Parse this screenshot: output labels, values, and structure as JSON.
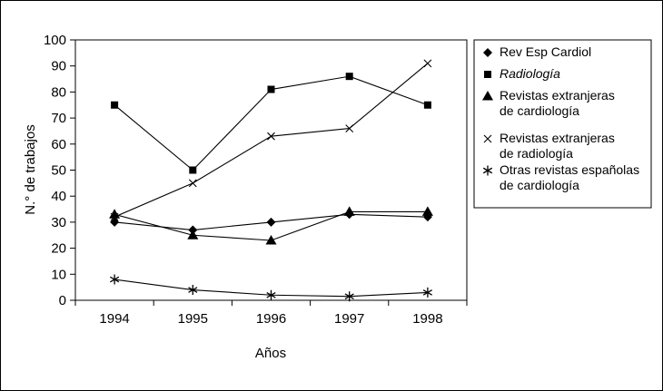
{
  "chart_data": {
    "type": "line",
    "xlabel": "Años",
    "ylabel": "N.° de trabajos",
    "categories": [
      "1994",
      "1995",
      "1996",
      "1997",
      "1998"
    ],
    "ylim": [
      0,
      100
    ],
    "yticks": [
      "0",
      "10",
      "20",
      "30",
      "40",
      "50",
      "60",
      "70",
      "80",
      "90",
      "100"
    ],
    "grid": false,
    "legend_position": "right",
    "series": [
      {
        "name": "Rev Esp Cardiol",
        "name_lines": [
          "Rev Esp Cardiol"
        ],
        "italic": false,
        "marker": "diamond",
        "values": [
          30,
          27,
          30,
          33,
          32
        ]
      },
      {
        "name": "Radiología",
        "name_lines": [
          "Radiología"
        ],
        "italic": true,
        "marker": "square",
        "values": [
          75,
          50,
          81,
          86,
          75
        ]
      },
      {
        "name": "Revistas extranjeras de cardiología",
        "name_lines": [
          "Revistas extranjeras",
          "de cardiología"
        ],
        "italic": false,
        "marker": "triangle",
        "values": [
          33,
          25,
          23,
          34,
          34
        ]
      },
      {
        "name": "Revistas extranjeras de radiología",
        "name_lines": [
          "Revistas extranjeras",
          "de radiología"
        ],
        "italic": false,
        "marker": "x",
        "values": [
          32,
          45,
          63,
          66,
          91
        ]
      },
      {
        "name": "Otras revistas españolas de cardiología",
        "name_lines": [
          "Otras revistas españolas",
          "de cardiología"
        ],
        "italic": false,
        "marker": "star",
        "values": [
          8,
          4,
          2,
          1.5,
          3
        ]
      }
    ]
  }
}
